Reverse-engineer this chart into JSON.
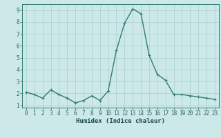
{
  "x": [
    0,
    1,
    2,
    3,
    4,
    5,
    6,
    7,
    8,
    9,
    10,
    11,
    12,
    13,
    14,
    15,
    16,
    17,
    18,
    19,
    20,
    21,
    22,
    23
  ],
  "y": [
    2.1,
    1.9,
    1.6,
    2.3,
    1.9,
    1.6,
    1.2,
    1.4,
    1.8,
    1.4,
    2.2,
    5.6,
    7.9,
    9.1,
    8.7,
    5.2,
    3.6,
    3.1,
    1.9,
    1.9,
    1.8,
    1.7,
    1.6,
    1.5
  ],
  "xlabel": "Humidex (Indice chaleur)",
  "ylim": [
    0.8,
    9.5
  ],
  "xlim": [
    -0.5,
    23.5
  ],
  "line_color": "#2e7d6e",
  "bg_color": "#cce8e8",
  "grid_color": "#aacfcf",
  "tick_label_color": "#2e5f5f",
  "xlabel_color": "#1a4a4a",
  "axis_color": "#2e7d6e",
  "yticks": [
    1,
    2,
    3,
    4,
    5,
    6,
    7,
    8,
    9
  ],
  "xticks": [
    0,
    1,
    2,
    3,
    4,
    5,
    6,
    7,
    8,
    9,
    10,
    11,
    12,
    13,
    14,
    15,
    16,
    17,
    18,
    19,
    20,
    21,
    22,
    23
  ],
  "marker": "+",
  "marker_size": 3,
  "line_width": 1.0,
  "font_size_tick": 5.5,
  "font_size_xlabel": 6.5
}
